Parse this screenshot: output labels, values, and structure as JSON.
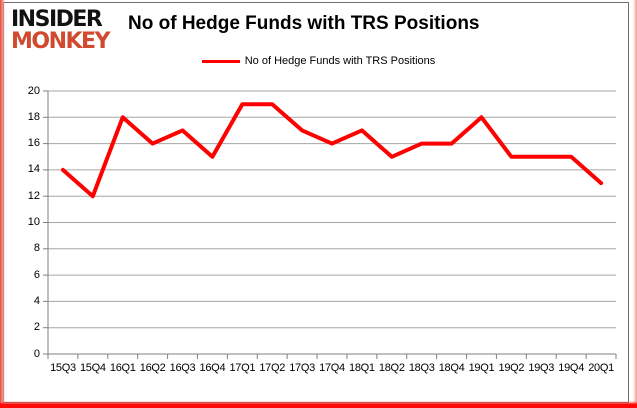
{
  "logo": {
    "line1": "INSIDER",
    "line2": "MONKEY",
    "line1_color": "#121212",
    "line2_color": "#d14a30"
  },
  "header": {
    "title": "No of Hedge Funds with TRS Positions"
  },
  "legend": {
    "label": "No of Hedge Funds with TRS Positions",
    "line_color": "#ff0000"
  },
  "chart_data": {
    "type": "line",
    "title": "No of Hedge Funds with TRS Positions",
    "series": [
      {
        "name": "No of Hedge Funds with TRS Positions",
        "color": "#ff0000",
        "values": [
          14,
          12,
          18,
          16,
          17,
          15,
          19,
          19,
          17,
          16,
          17,
          15,
          16,
          16,
          18,
          15,
          15,
          15,
          13
        ]
      }
    ],
    "categories": [
      "15Q3",
      "15Q4",
      "16Q1",
      "16Q2",
      "16Q3",
      "16Q4",
      "17Q1",
      "17Q2",
      "17Q3",
      "17Q4",
      "18Q1",
      "18Q2",
      "18Q3",
      "18Q4",
      "19Q1",
      "19Q2",
      "19Q3",
      "19Q4",
      "20Q1"
    ],
    "xlabel": "",
    "ylabel": "",
    "ylim": [
      0,
      20
    ],
    "ytick_step": 2,
    "grid": true,
    "legend_position": "top",
    "gridline_color": "#a6a6a6",
    "axis_color": "#808080"
  }
}
